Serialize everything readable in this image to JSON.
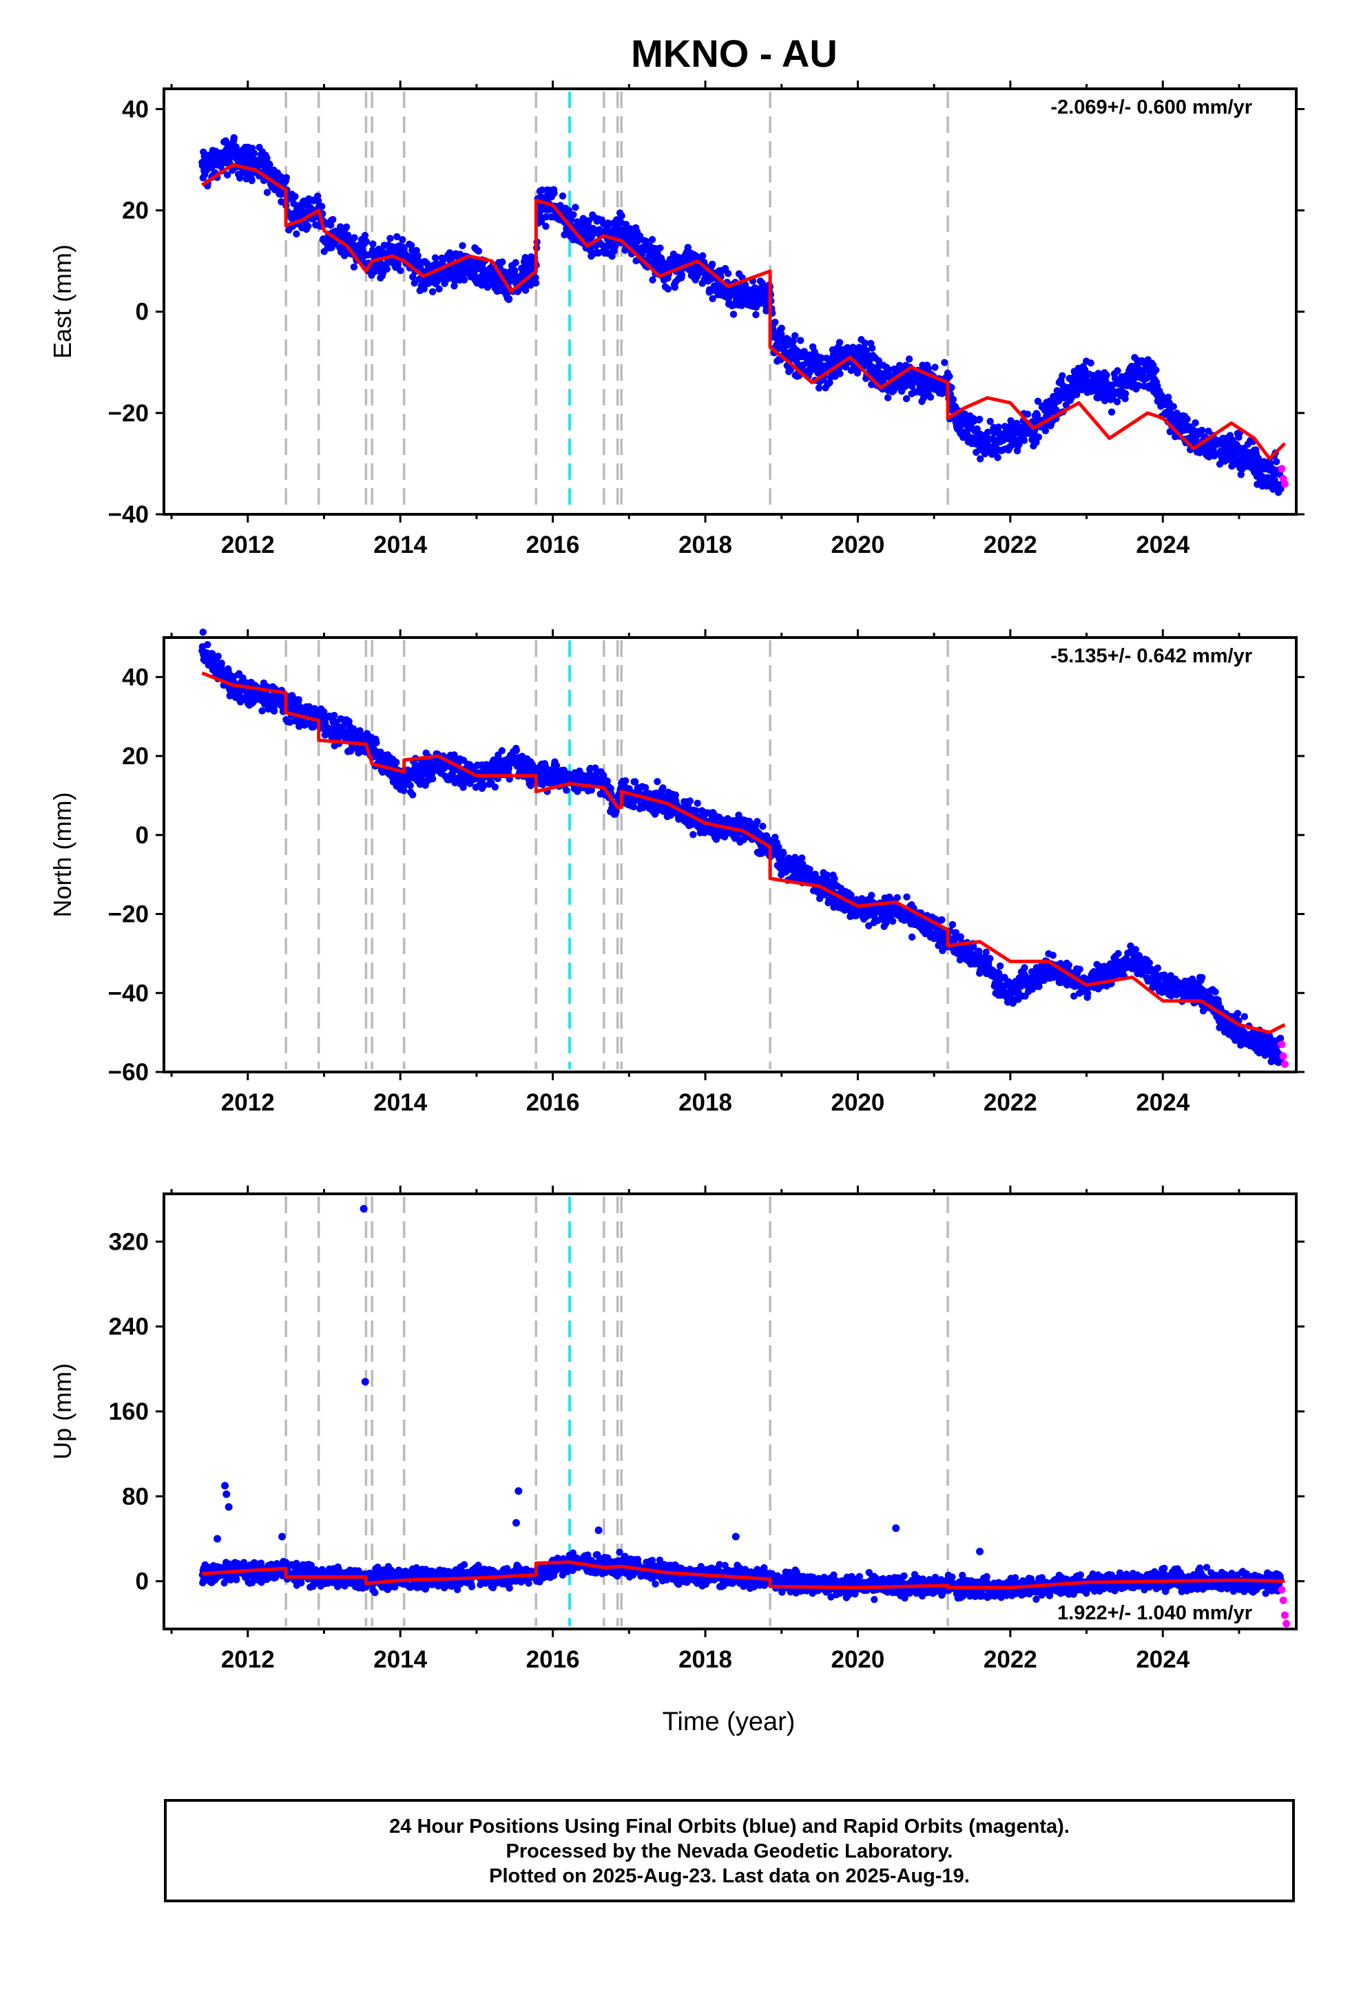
{
  "title": "MKNO - AU",
  "xlabel": "Time (year)",
  "x_tick_labels": [
    "2012",
    "2014",
    "2016",
    "2018",
    "2020",
    "2022",
    "2024"
  ],
  "footer": {
    "line1": "24 Hour Positions Using Final Orbits (blue) and Rapid Orbits (magenta).",
    "line2": "Processed by the Nevada Geodetic Laboratory.",
    "line3": "Plotted on 2025-Aug-23. Last data on 2025-Aug-19."
  },
  "colors": {
    "final_orbits": "#0000ff",
    "rapid_orbits": "#ff00ff",
    "model_fit": "#ff0000",
    "offset_line": "#bbbbbb",
    "event_line": "#00e5ee"
  },
  "chart_data": [
    {
      "type": "scatter",
      "panel": "east",
      "ylabel": "East (mm)",
      "rate_label": "-2.069+/- 0.600 mm/yr",
      "xlim": [
        2010.9,
        2025.75
      ],
      "ylim": [
        -40,
        44
      ],
      "yticks": [
        -40,
        -20,
        0,
        20,
        40
      ],
      "xticks": [
        2012,
        2014,
        2016,
        2018,
        2020,
        2022,
        2024
      ],
      "grey_dashed_lines": [
        2012.5,
        2012.93,
        2013.55,
        2013.63,
        2014.05,
        2015.78,
        2016.67,
        2016.85,
        2016.9,
        2018.85,
        2021.18
      ],
      "cyan_dashed_lines": [
        2016.22
      ],
      "final_orbits_trend": [
        [
          2011.4,
          28
        ],
        [
          2011.8,
          31
        ],
        [
          2012.2,
          28
        ],
        [
          2012.5,
          24
        ],
        [
          2012.55,
          19
        ],
        [
          2012.93,
          20
        ],
        [
          2013.0,
          16
        ],
        [
          2013.55,
          11
        ],
        [
          2013.63,
          9
        ],
        [
          2014.05,
          12
        ],
        [
          2014.3,
          7
        ],
        [
          2014.9,
          9
        ],
        [
          2015.4,
          6
        ],
        [
          2015.78,
          8
        ],
        [
          2015.8,
          20
        ],
        [
          2016.0,
          21
        ],
        [
          2016.22,
          17
        ],
        [
          2016.67,
          14
        ],
        [
          2016.9,
          16
        ],
        [
          2017.5,
          8
        ],
        [
          2017.8,
          10
        ],
        [
          2018.3,
          4
        ],
        [
          2018.85,
          3
        ],
        [
          2018.9,
          -6
        ],
        [
          2019.5,
          -12
        ],
        [
          2020.0,
          -8
        ],
        [
          2020.4,
          -14
        ],
        [
          2020.7,
          -13
        ],
        [
          2021.18,
          -15
        ],
        [
          2021.3,
          -22
        ],
        [
          2021.7,
          -26
        ],
        [
          2022.2,
          -24
        ],
        [
          2022.5,
          -20
        ],
        [
          2022.9,
          -13
        ],
        [
          2023.3,
          -16
        ],
        [
          2023.8,
          -11
        ],
        [
          2024.1,
          -21
        ],
        [
          2024.5,
          -26
        ],
        [
          2025.0,
          -28
        ],
        [
          2025.55,
          -33
        ]
      ],
      "rapid_orbits": [
        [
          2025.56,
          -31
        ],
        [
          2025.58,
          -33
        ],
        [
          2025.6,
          -34
        ]
      ],
      "model_fit": [
        [
          2011.4,
          25
        ],
        [
          2011.8,
          29
        ],
        [
          2012.1,
          28
        ],
        [
          2012.5,
          24
        ],
        [
          2012.5,
          17
        ],
        [
          2012.7,
          18
        ],
        [
          2012.93,
          20
        ],
        [
          2013.0,
          16
        ],
        [
          2013.3,
          13
        ],
        [
          2013.55,
          8
        ],
        [
          2013.63,
          10
        ],
        [
          2013.9,
          11
        ],
        [
          2014.05,
          10
        ],
        [
          2014.3,
          7
        ],
        [
          2014.9,
          11
        ],
        [
          2015.2,
          10
        ],
        [
          2015.45,
          4
        ],
        [
          2015.78,
          8
        ],
        [
          2015.78,
          22
        ],
        [
          2016.0,
          21
        ],
        [
          2016.22,
          17
        ],
        [
          2016.45,
          13
        ],
        [
          2016.67,
          15
        ],
        [
          2016.9,
          14
        ],
        [
          2017.4,
          7
        ],
        [
          2017.9,
          10
        ],
        [
          2018.3,
          5
        ],
        [
          2018.85,
          8
        ],
        [
          2018.85,
          -7
        ],
        [
          2019.1,
          -10
        ],
        [
          2019.4,
          -14
        ],
        [
          2019.9,
          -9
        ],
        [
          2020.3,
          -15
        ],
        [
          2020.7,
          -11
        ],
        [
          2021.18,
          -14
        ],
        [
          2021.18,
          -21
        ],
        [
          2021.4,
          -19
        ],
        [
          2021.7,
          -17
        ],
        [
          2022.0,
          -18
        ],
        [
          2022.3,
          -23
        ],
        [
          2022.9,
          -18
        ],
        [
          2023.3,
          -25
        ],
        [
          2023.8,
          -20
        ],
        [
          2024.0,
          -21
        ],
        [
          2024.4,
          -27
        ],
        [
          2024.9,
          -22
        ],
        [
          2025.2,
          -25
        ],
        [
          2025.4,
          -29
        ],
        [
          2025.6,
          -26
        ]
      ]
    },
    {
      "type": "scatter",
      "panel": "north",
      "ylabel": "North (mm)",
      "rate_label": "-5.135+/- 0.642 mm/yr",
      "xlim": [
        2010.9,
        2025.75
      ],
      "ylim": [
        -60,
        50
      ],
      "yticks": [
        -60,
        -40,
        -20,
        0,
        20,
        40
      ],
      "xticks": [
        2012,
        2014,
        2016,
        2018,
        2020,
        2022,
        2024
      ],
      "grey_dashed_lines": [
        2012.5,
        2012.93,
        2013.55,
        2013.63,
        2014.05,
        2015.78,
        2016.67,
        2016.85,
        2016.9,
        2018.85,
        2021.18
      ],
      "cyan_dashed_lines": [
        2016.22
      ],
      "final_orbits_trend": [
        [
          2011.4,
          47
        ],
        [
          2011.8,
          38
        ],
        [
          2012.5,
          33
        ],
        [
          2012.93,
          29
        ],
        [
          2013.55,
          23
        ],
        [
          2013.8,
          18
        ],
        [
          2014.05,
          14
        ],
        [
          2014.5,
          18
        ],
        [
          2015.0,
          15
        ],
        [
          2015.5,
          18
        ],
        [
          2015.78,
          16
        ],
        [
          2016.22,
          14
        ],
        [
          2016.67,
          14
        ],
        [
          2016.8,
          6
        ],
        [
          2016.9,
          11
        ],
        [
          2017.5,
          8
        ],
        [
          2018.0,
          3
        ],
        [
          2018.5,
          2
        ],
        [
          2018.85,
          -3
        ],
        [
          2019.0,
          -7
        ],
        [
          2019.5,
          -12
        ],
        [
          2020.0,
          -19
        ],
        [
          2020.5,
          -19
        ],
        [
          2021.18,
          -26
        ],
        [
          2021.6,
          -32
        ],
        [
          2022.0,
          -40
        ],
        [
          2022.5,
          -34
        ],
        [
          2023.0,
          -38
        ],
        [
          2023.6,
          -31
        ],
        [
          2024.0,
          -38
        ],
        [
          2024.5,
          -40
        ],
        [
          2025.0,
          -50
        ],
        [
          2025.55,
          -55
        ]
      ],
      "rapid_orbits": [
        [
          2025.56,
          -53
        ],
        [
          2025.58,
          -56
        ],
        [
          2025.6,
          -58
        ]
      ],
      "model_fit": [
        [
          2011.4,
          41
        ],
        [
          2011.8,
          38
        ],
        [
          2012.5,
          36
        ],
        [
          2012.5,
          31
        ],
        [
          2012.93,
          29
        ],
        [
          2012.93,
          24
        ],
        [
          2013.55,
          23
        ],
        [
          2013.63,
          18
        ],
        [
          2014.05,
          16
        ],
        [
          2014.05,
          19
        ],
        [
          2014.5,
          20
        ],
        [
          2015.0,
          15
        ],
        [
          2015.5,
          15
        ],
        [
          2015.78,
          15
        ],
        [
          2015.78,
          11
        ],
        [
          2016.22,
          13
        ],
        [
          2016.67,
          12
        ],
        [
          2016.85,
          7
        ],
        [
          2016.9,
          7
        ],
        [
          2016.9,
          11
        ],
        [
          2017.5,
          8
        ],
        [
          2018.0,
          3
        ],
        [
          2018.5,
          1
        ],
        [
          2018.85,
          -3
        ],
        [
          2018.85,
          -11
        ],
        [
          2019.5,
          -13
        ],
        [
          2020.0,
          -18
        ],
        [
          2020.5,
          -17
        ],
        [
          2021.18,
          -24
        ],
        [
          2021.18,
          -28
        ],
        [
          2021.6,
          -27
        ],
        [
          2022.0,
          -32
        ],
        [
          2022.5,
          -32
        ],
        [
          2023.0,
          -38
        ],
        [
          2023.6,
          -36
        ],
        [
          2024.0,
          -42
        ],
        [
          2024.5,
          -42
        ],
        [
          2025.0,
          -48
        ],
        [
          2025.4,
          -50
        ],
        [
          2025.6,
          -48
        ]
      ]
    },
    {
      "type": "scatter",
      "panel": "up",
      "ylabel": "Up (mm)",
      "rate_label": "1.922+/- 1.040 mm/yr",
      "xlim": [
        2010.9,
        2025.75
      ],
      "ylim": [
        -45,
        365
      ],
      "yticks": [
        0,
        80,
        160,
        240,
        320
      ],
      "xticks": [
        2012,
        2014,
        2016,
        2018,
        2020,
        2022,
        2024
      ],
      "grey_dashed_lines": [
        2012.5,
        2012.93,
        2013.55,
        2013.63,
        2014.05,
        2015.78,
        2016.67,
        2016.85,
        2016.9,
        2018.85,
        2021.18
      ],
      "cyan_dashed_lines": [
        2016.22
      ],
      "final_orbits_trend": [
        [
          2011.4,
          8
        ],
        [
          2012.5,
          10
        ],
        [
          2012.93,
          4
        ],
        [
          2013.55,
          2
        ],
        [
          2014.05,
          3
        ],
        [
          2015.0,
          4
        ],
        [
          2015.78,
          6
        ],
        [
          2016.22,
          18
        ],
        [
          2016.9,
          14
        ],
        [
          2017.5,
          8
        ],
        [
          2018.85,
          2
        ],
        [
          2019.5,
          -4
        ],
        [
          2020.5,
          -5
        ],
        [
          2021.18,
          -5
        ],
        [
          2022.0,
          -8
        ],
        [
          2023.0,
          -2
        ],
        [
          2024.0,
          1
        ],
        [
          2025.0,
          0
        ],
        [
          2025.55,
          -2
        ]
      ],
      "outliers": [
        [
          2011.7,
          90
        ],
        [
          2011.72,
          82
        ],
        [
          2011.75,
          70
        ],
        [
          2011.6,
          40
        ],
        [
          2013.52,
          351
        ],
        [
          2013.54,
          188
        ],
        [
          2015.55,
          85
        ],
        [
          2015.52,
          55
        ],
        [
          2012.45,
          42
        ],
        [
          2016.6,
          48
        ],
        [
          2018.4,
          42
        ],
        [
          2020.5,
          50
        ],
        [
          2021.6,
          28
        ]
      ],
      "rapid_orbits": [
        [
          2025.56,
          -8
        ],
        [
          2025.58,
          -18
        ],
        [
          2025.6,
          -32
        ],
        [
          2025.62,
          -40
        ]
      ],
      "model_fit": [
        [
          2011.4,
          7
        ],
        [
          2012.0,
          10
        ],
        [
          2012.5,
          12
        ],
        [
          2012.5,
          4
        ],
        [
          2012.93,
          4
        ],
        [
          2013.55,
          4
        ],
        [
          2013.55,
          -2
        ],
        [
          2014.05,
          1
        ],
        [
          2015.0,
          3
        ],
        [
          2015.78,
          6
        ],
        [
          2015.78,
          17
        ],
        [
          2016.22,
          18
        ],
        [
          2016.67,
          13
        ],
        [
          2016.9,
          14
        ],
        [
          2017.5,
          8
        ],
        [
          2018.85,
          2
        ],
        [
          2018.85,
          -5
        ],
        [
          2020.0,
          -6
        ],
        [
          2021.18,
          -4
        ],
        [
          2021.18,
          -6
        ],
        [
          2022.0,
          -6
        ],
        [
          2023.0,
          -1
        ],
        [
          2024.0,
          0
        ],
        [
          2025.0,
          1
        ],
        [
          2025.6,
          0
        ]
      ]
    }
  ]
}
